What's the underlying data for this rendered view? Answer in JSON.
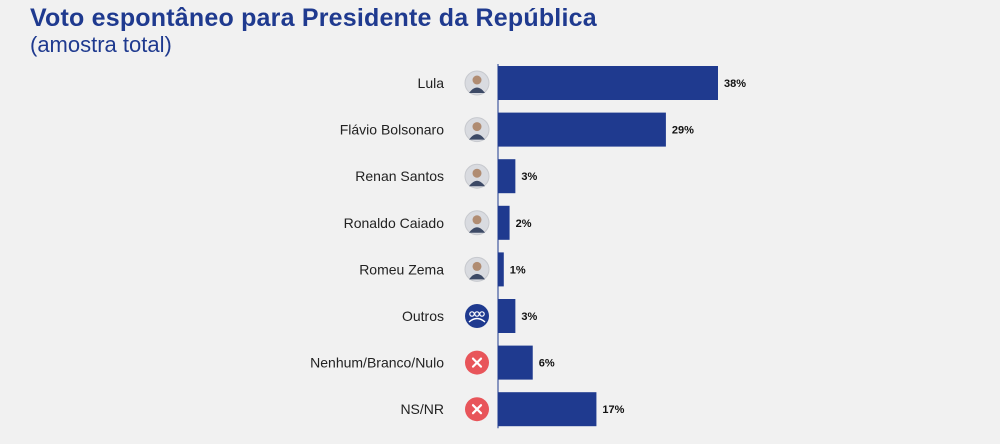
{
  "title": "Voto espontâneo para Presidente da República",
  "subtitle": "(amostra total)",
  "colors": {
    "bar": "#1f3a8f",
    "title": "#1f3a8f",
    "x_icon": "#e8555a",
    "group_icon": "#1f3a8f"
  },
  "chart_data": {
    "type": "bar",
    "orientation": "horizontal",
    "title": "Voto espontâneo para Presidente da República",
    "subtitle": "(amostra total)",
    "categories": [
      "Lula",
      "Flávio Bolsonaro",
      "Renan Santos",
      "Ronaldo Caiado",
      "Romeu Zema",
      "Outros",
      "Nenhum/Branco/Nulo",
      "NS/NR"
    ],
    "values": [
      38,
      29,
      3,
      2,
      1,
      3,
      6,
      17
    ],
    "value_labels": [
      "38%",
      "29%",
      "3%",
      "2%",
      "1%",
      "3%",
      "6%",
      "17%"
    ],
    "icons": [
      "avatar-icon",
      "avatar-icon",
      "avatar-icon",
      "avatar-icon",
      "avatar-icon",
      "group-icon",
      "x-icon",
      "x-icon"
    ],
    "xlim": [
      0,
      38
    ],
    "grid": false,
    "legend": "none"
  }
}
